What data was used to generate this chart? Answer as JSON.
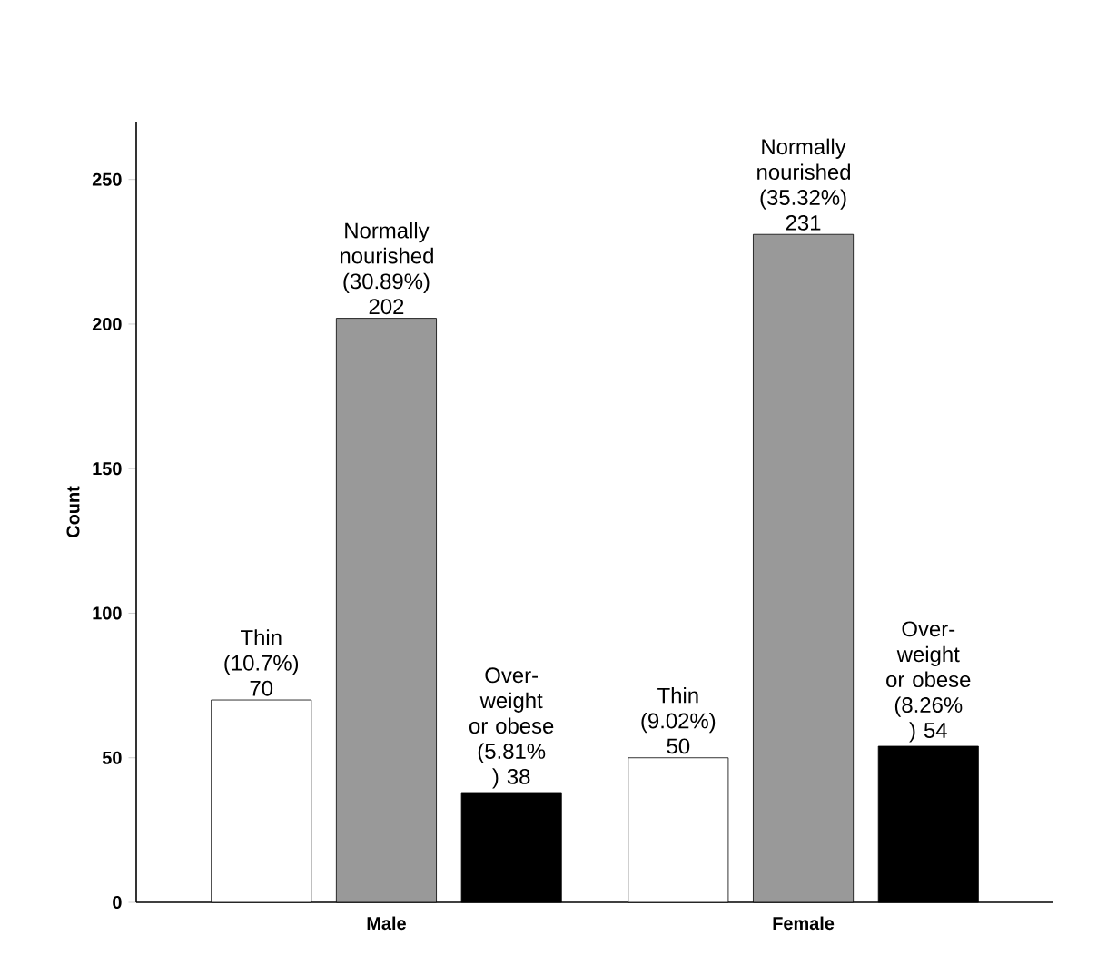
{
  "chart_data": {
    "type": "bar",
    "ylabel": "Count",
    "categories": [
      "Male",
      "Female"
    ],
    "ylim": [
      0,
      270
    ],
    "yticks": [
      0,
      50,
      100,
      150,
      200,
      250
    ],
    "grid": false,
    "series": [
      {
        "color": "#ffffff",
        "values": [
          70,
          50
        ],
        "value_labels": [
          "Thin (10.7%) 70",
          "Thin (9.02%) 50"
        ]
      },
      {
        "color": "#999999",
        "values": [
          202,
          231
        ],
        "value_labels": [
          "Normally nourished (30.89%) 202",
          "Normally nourished (35.32%) 231"
        ]
      },
      {
        "color": "#000000",
        "values": [
          38,
          54
        ],
        "value_labels": [
          "Over-weight or obese (5.81% ) 38",
          "Over-weight or obese (8.26% ) 54"
        ]
      }
    ]
  }
}
